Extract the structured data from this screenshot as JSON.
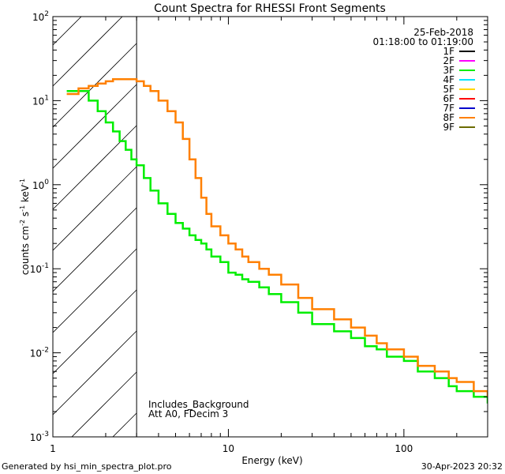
{
  "chart_data": {
    "type": "line",
    "title": "Count Spectra for RHESSI Front Segments",
    "xlabel": "Energy (keV)",
    "ylabel_parts": [
      "counts cm",
      "-2",
      " s",
      "-1",
      " keV",
      "-1"
    ],
    "xscale": "log",
    "yscale": "log",
    "xlim": [
      1,
      300
    ],
    "ylim": [
      0.001,
      100
    ],
    "x_ticks": [
      {
        "value": 1,
        "label": "1"
      },
      {
        "value": 10,
        "label": "10"
      },
      {
        "value": 100,
        "label": "100"
      }
    ],
    "y_ticks": [
      {
        "value": 0.001,
        "base": "10",
        "exp": "-3"
      },
      {
        "value": 0.01,
        "base": "10",
        "exp": "-2"
      },
      {
        "value": 0.1,
        "base": "10",
        "exp": "-1"
      },
      {
        "value": 1,
        "base": "10",
        "exp": "0"
      },
      {
        "value": 10,
        "base": "10",
        "exp": "1"
      },
      {
        "value": 100,
        "base": "10",
        "exp": "2"
      }
    ],
    "date": "25-Feb-2018",
    "time_range": "01:18:00 to 01:19:00",
    "excluded_region": {
      "x_min": 1,
      "x_max": 3
    },
    "annotations": [
      "Includes_Background",
      "Att A0, FDecim 3"
    ],
    "legend": [
      {
        "name": "1F",
        "color": "#000000"
      },
      {
        "name": "2F",
        "color": "#ff00ff"
      },
      {
        "name": "3F",
        "color": "#00ee00"
      },
      {
        "name": "4F",
        "color": "#00e5ff"
      },
      {
        "name": "5F",
        "color": "#ffd700"
      },
      {
        "name": "6F",
        "color": "#ff0000"
      },
      {
        "name": "7F",
        "color": "#0000cc"
      },
      {
        "name": "8F",
        "color": "#ff8000"
      },
      {
        "name": "9F",
        "color": "#6b6b00"
      }
    ],
    "series": [
      {
        "name": "3F",
        "color": "#00ee00",
        "x": [
          1.2,
          1.4,
          1.6,
          1.8,
          2.0,
          2.2,
          2.4,
          2.6,
          2.8,
          3.0,
          3.3,
          3.6,
          4.0,
          4.5,
          5.0,
          5.5,
          6.0,
          6.5,
          7.0,
          7.5,
          8.0,
          9.0,
          10,
          11,
          12,
          13,
          15,
          17,
          20,
          25,
          30,
          40,
          50,
          60,
          70,
          80,
          100,
          120,
          150,
          180,
          200,
          250,
          300
        ],
        "values": [
          13,
          13,
          10,
          7.5,
          5.5,
          4.3,
          3.3,
          2.6,
          2.0,
          1.7,
          1.2,
          0.85,
          0.6,
          0.45,
          0.35,
          0.3,
          0.25,
          0.22,
          0.2,
          0.17,
          0.14,
          0.12,
          0.09,
          0.085,
          0.075,
          0.07,
          0.06,
          0.05,
          0.04,
          0.03,
          0.022,
          0.018,
          0.015,
          0.012,
          0.011,
          0.009,
          0.008,
          0.006,
          0.005,
          0.004,
          0.0035,
          0.003,
          0.0025
        ]
      },
      {
        "name": "8F",
        "color": "#ff8000",
        "x": [
          1.2,
          1.4,
          1.6,
          1.8,
          2.0,
          2.2,
          2.4,
          2.6,
          2.8,
          3.0,
          3.3,
          3.6,
          4.0,
          4.5,
          5.0,
          5.5,
          6.0,
          6.5,
          7.0,
          7.5,
          8.0,
          9.0,
          10,
          11,
          12,
          13,
          15,
          17,
          20,
          25,
          30,
          40,
          50,
          60,
          70,
          80,
          100,
          120,
          150,
          180,
          200,
          250,
          300
        ],
        "values": [
          12,
          14,
          15,
          16,
          17,
          18,
          18,
          18,
          18,
          17,
          15,
          13,
          10,
          7.5,
          5.5,
          3.5,
          2.0,
          1.2,
          0.7,
          0.45,
          0.32,
          0.25,
          0.2,
          0.17,
          0.14,
          0.12,
          0.1,
          0.085,
          0.065,
          0.045,
          0.033,
          0.025,
          0.02,
          0.016,
          0.013,
          0.011,
          0.009,
          0.007,
          0.006,
          0.005,
          0.0045,
          0.0035,
          0.003
        ]
      }
    ]
  },
  "footer": {
    "generated_by": "Generated by hsi_min_spectra_plot.pro",
    "timestamp": "30-Apr-2023 20:32"
  }
}
